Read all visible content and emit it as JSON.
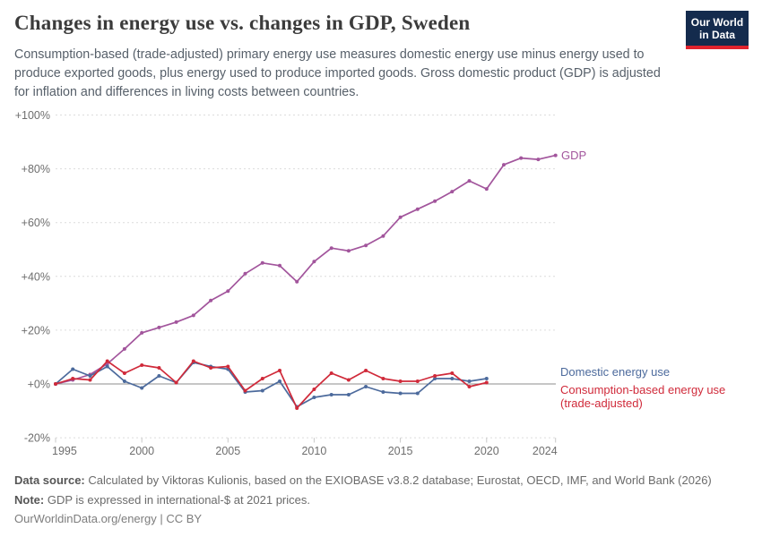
{
  "header": {
    "title": "Changes in energy use vs. changes in GDP, Sweden",
    "subtitle": "Consumption-based (trade-adjusted) primary energy use measures domestic energy use minus energy used to produce exported goods, plus energy used to produce imported goods. Gross domestic product (GDP) is adjusted for inflation and differences in living costs between countries.",
    "logo": {
      "line1": "Our World",
      "line2": "in Data",
      "bg_color": "#142b4d",
      "bar_color": "#e0232d"
    }
  },
  "legend": {
    "gdp": "GDP",
    "domestic": "Domestic energy use",
    "consumption_line1": "Consumption-based energy use",
    "consumption_line2": "(trade-adjusted)"
  },
  "chart_data": {
    "type": "line",
    "title": "Changes in energy use vs. changes in GDP, Sweden",
    "xlabel": "",
    "ylabel": "",
    "xlim": [
      1995,
      2024
    ],
    "ylim": [
      -20,
      100
    ],
    "grid": "horizontal-dashed",
    "legend_position": "right-of-line-ends",
    "y_ticks": [
      {
        "value": 100,
        "label": "+100%"
      },
      {
        "value": 80,
        "label": "+80%"
      },
      {
        "value": 60,
        "label": "+60%"
      },
      {
        "value": 40,
        "label": "+40%"
      },
      {
        "value": 20,
        "label": "+20%"
      },
      {
        "value": 0,
        "label": "+0%"
      },
      {
        "value": -20,
        "label": "-20%"
      }
    ],
    "x_ticks": [
      {
        "value": 1995,
        "label": "1995"
      },
      {
        "value": 2000,
        "label": "2000"
      },
      {
        "value": 2005,
        "label": "2005"
      },
      {
        "value": 2010,
        "label": "2010"
      },
      {
        "value": 2015,
        "label": "2015"
      },
      {
        "value": 2020,
        "label": "2020"
      },
      {
        "value": 2024,
        "label": "2024"
      }
    ],
    "series": [
      {
        "name": "GDP",
        "color": "#a2559c",
        "years": [
          1995,
          1996,
          1997,
          1998,
          1999,
          2000,
          2001,
          2002,
          2003,
          2004,
          2005,
          2006,
          2007,
          2008,
          2009,
          2010,
          2011,
          2012,
          2013,
          2014,
          2015,
          2016,
          2017,
          2018,
          2019,
          2020,
          2021,
          2022,
          2023,
          2024
        ],
        "values": [
          0,
          1.5,
          3.5,
          7.5,
          13,
          19,
          21,
          23,
          25.5,
          31,
          34.5,
          41,
          45,
          44,
          38,
          45.5,
          50.5,
          49.5,
          51.5,
          55,
          62,
          65,
          68,
          71.5,
          75.5,
          72.5,
          81.5,
          84,
          83.5,
          85
        ]
      },
      {
        "name": "Domestic energy use",
        "color": "#4c6a9c",
        "years": [
          1995,
          1996,
          1997,
          1998,
          1999,
          2000,
          2001,
          2002,
          2003,
          2004,
          2005,
          2006,
          2007,
          2008,
          2009,
          2010,
          2011,
          2012,
          2013,
          2014,
          2015,
          2016,
          2017,
          2018,
          2019,
          2020
        ],
        "values": [
          0,
          5.5,
          3,
          6.5,
          1,
          -1.5,
          3,
          0.5,
          8,
          6.5,
          5.5,
          -3,
          -2.5,
          1,
          -8.5,
          -5,
          -4,
          -4,
          -1,
          -3,
          -3.5,
          -3.5,
          2,
          2,
          1,
          2
        ]
      },
      {
        "name": "Consumption-based energy use (trade-adjusted)",
        "color": "#d02a3a",
        "years": [
          1995,
          1996,
          1997,
          1998,
          1999,
          2000,
          2001,
          2002,
          2003,
          2004,
          2005,
          2006,
          2007,
          2008,
          2009,
          2010,
          2011,
          2012,
          2013,
          2014,
          2015,
          2016,
          2017,
          2018,
          2019,
          2020
        ],
        "values": [
          0,
          2,
          1.5,
          8.5,
          4,
          7,
          6,
          0.5,
          8.5,
          6,
          6.5,
          -2.5,
          2,
          5,
          -9,
          -2,
          4,
          1.5,
          5,
          2,
          1,
          1,
          3,
          4,
          -1,
          0.5
        ]
      }
    ]
  },
  "footer": {
    "data_source_label": "Data source:",
    "data_source_text": "Calculated by Viktoras Kulionis, based on the EXIOBASE v3.8.2 database; Eurostat, OECD, IMF, and World Bank (2026)",
    "note_label": "Note:",
    "note_text": "GDP is expressed in international-$ at 2021 prices.",
    "license_text": "OurWorldinData.org/energy | CC BY"
  }
}
